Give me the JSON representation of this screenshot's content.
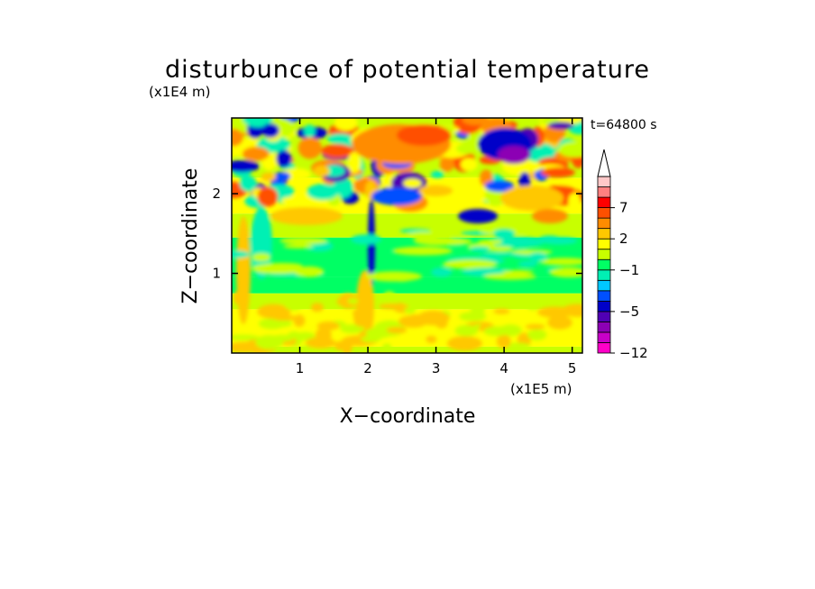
{
  "chart_data": {
    "type": "heatmap",
    "title": "disturbunce of potential temperature",
    "xlabel": "X−coordinate",
    "ylabel": "Z−coordinate",
    "x_unit": "(x1E5 m)",
    "y_unit": "(x1E4 m)",
    "time_label": "t=64800 s",
    "xlim": [
      0,
      5.15
    ],
    "ylim": [
      0,
      2.95
    ],
    "x_ticks": [
      1,
      2,
      3,
      4,
      5
    ],
    "x_tick_labels": [
      "1",
      "2",
      "3",
      "4",
      "5"
    ],
    "y_ticks": [
      1,
      2
    ],
    "y_tick_labels": [
      "1",
      "2"
    ],
    "grid": false,
    "colorbar": {
      "levels": [
        -12,
        -10,
        -8,
        -6,
        -5,
        -4,
        -3,
        -2,
        -1,
        0,
        1,
        2,
        3,
        5,
        7,
        9,
        11
      ],
      "labeled_levels": [
        -12,
        -5,
        -1,
        2,
        7
      ],
      "labels": [
        "−12",
        "−5",
        "−1",
        "2",
        "7"
      ],
      "colors": [
        "#ff00c8",
        "#c800c8",
        "#8c00b4",
        "#5000b4",
        "#0000c8",
        "#0050ff",
        "#00c8ff",
        "#00f0b4",
        "#00ff64",
        "#c8ff00",
        "#ffff00",
        "#ffc800",
        "#ff8c00",
        "#ff5000",
        "#ff0000",
        "#ff8080",
        "#ffc8c8"
      ],
      "extend": "max"
    },
    "bands": [
      {
        "z_range": [
          0,
          0.08
        ],
        "value": 0.5
      },
      {
        "z_range": [
          0.08,
          0.55
        ],
        "value": 1.5
      },
      {
        "z_range": [
          0.55,
          0.75
        ],
        "value": 0.5
      },
      {
        "z_range": [
          0.75,
          0.95
        ],
        "value": -0.3
      },
      {
        "z_range": [
          0.95,
          1.45
        ],
        "value": -0.6
      },
      {
        "z_range": [
          1.45,
          1.75
        ],
        "value": 0.6
      },
      {
        "z_range": [
          1.75,
          2.2
        ],
        "value": 1.5
      },
      {
        "z_range": [
          2.2,
          2.95
        ],
        "value": 0.8
      }
    ]
  }
}
